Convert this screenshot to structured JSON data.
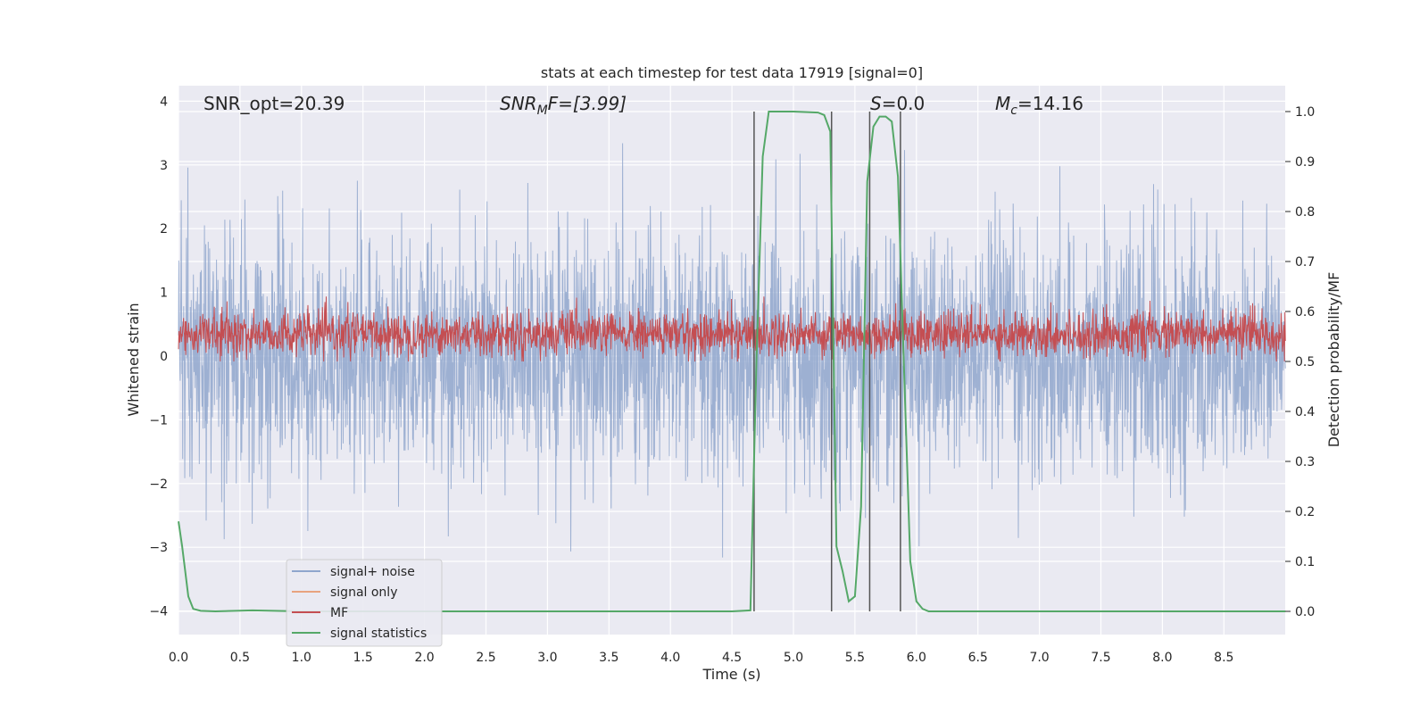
{
  "chart_data": {
    "type": "line",
    "title": "stats at each timestep for test data 17919 [signal=0]",
    "xlabel": "Time (s)",
    "ylabel": "Whitened strain",
    "y2label": "Detection probability/MF",
    "xlim": [
      0,
      9
    ],
    "ylim": [
      -4.2,
      4.2
    ],
    "y2lim": [
      -0.045,
      1.045
    ],
    "grid": true,
    "legend_position": "lower-left",
    "xticks": [
      "0.0",
      "0.5",
      "1.0",
      "1.5",
      "2.0",
      "2.5",
      "3.0",
      "3.5",
      "4.0",
      "4.5",
      "5.0",
      "5.5",
      "6.0",
      "6.5",
      "7.0",
      "7.5",
      "8.0",
      "8.5"
    ],
    "yticks": [
      "4",
      "3",
      "2",
      "1",
      "0",
      "−1",
      "−2",
      "−3",
      "−4"
    ],
    "y2ticks": [
      "1.0",
      "0.9",
      "0.8",
      "0.7",
      "0.6",
      "0.5",
      "0.4",
      "0.3",
      "0.2",
      "0.1",
      "0.0"
    ],
    "annotations": {
      "snr_opt": "SNR_opt=20.39",
      "snr_mf_base": "SNR",
      "snr_mf_sub": "M",
      "snr_mf_tail": "F=[3.99]",
      "s_base": "S",
      "s_tail": "=0.0",
      "mc_base": "M",
      "mc_sub": "c",
      "mc_tail": "=14.16"
    },
    "series": [
      {
        "name": "signal+ noise",
        "color": "#8fa6cd",
        "description_amplitude_range": [
          -3.3,
          3.35
        ]
      },
      {
        "name": "signal only",
        "color": "#e8a37f",
        "values": []
      },
      {
        "name": "MF",
        "color": "#c44e52",
        "description_range_right_axis": [
          0.5,
          0.63
        ]
      },
      {
        "name": "signal statistics",
        "color": "#55a868",
        "axis": "right",
        "x": [
          0.0,
          0.03,
          0.08,
          0.12,
          0.18,
          0.3,
          0.6,
          1.0,
          2.0,
          3.0,
          4.0,
          4.5,
          4.65,
          4.7,
          4.75,
          4.8,
          5.0,
          5.2,
          5.25,
          5.3,
          5.35,
          5.4,
          5.45,
          5.5,
          5.55,
          5.6,
          5.65,
          5.7,
          5.75,
          5.8,
          5.85,
          5.9,
          5.95,
          6.0,
          6.05,
          6.1,
          6.2,
          6.5,
          7.0,
          8.0,
          9.0
        ],
        "values": [
          0.18,
          0.13,
          0.03,
          0.005,
          0.001,
          0.0,
          0.002,
          0.0,
          0.0,
          0.0,
          0.0,
          0.0,
          0.002,
          0.51,
          0.91,
          1.0,
          1.0,
          0.998,
          0.993,
          0.96,
          0.13,
          0.08,
          0.02,
          0.03,
          0.21,
          0.86,
          0.97,
          0.99,
          0.99,
          0.98,
          0.87,
          0.48,
          0.1,
          0.02,
          0.005,
          0.0,
          0.0,
          0.0,
          0.0,
          0.0,
          0.0
        ]
      }
    ],
    "vertical_lines_x": [
      4.68,
      5.31,
      5.62,
      5.87
    ]
  },
  "legend": {
    "items": [
      {
        "label": "signal+ noise",
        "color": "#8fa6cd"
      },
      {
        "label": "signal only",
        "color": "#e8a37f"
      },
      {
        "label": "MF",
        "color": "#c44e52"
      },
      {
        "label": "signal statistics",
        "color": "#55a868"
      }
    ]
  },
  "colors": {
    "plot_background": "#eaeaf2",
    "grid": "#ffffff",
    "vertical_lines": "#555555"
  }
}
